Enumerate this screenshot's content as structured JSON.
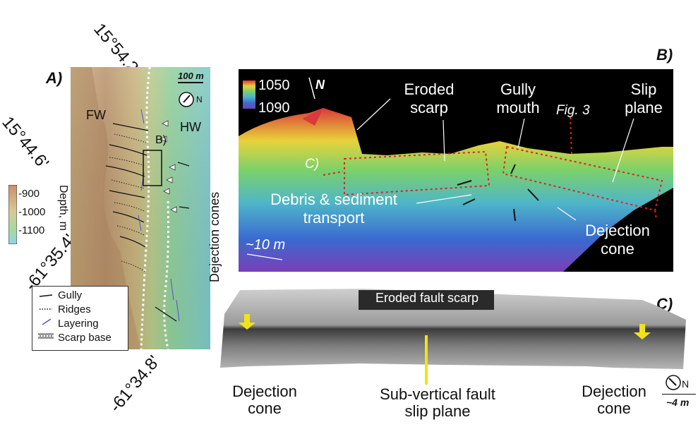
{
  "panelA": {
    "letter": "A)",
    "coords": {
      "top": "15°54.2'",
      "left_upper": "15°44.6'",
      "left_lower": "-61°35.4'",
      "bottom": "-61°34.8'"
    },
    "fw_label": "FW",
    "hw_label": "HW",
    "box_label": "B)",
    "scale_label": "100 m",
    "north_label": "N",
    "dejection_label": "Dejection cones",
    "depth_title": "Depth, m",
    "depth_ticks": [
      "-900",
      "-1000",
      "-1100"
    ],
    "legend": [
      "Gully",
      "Ridges",
      "Layering",
      "Scarp base"
    ]
  },
  "panelB": {
    "letter": "B)",
    "scale_top": "1050",
    "scale_bottom": "1090",
    "north": "N",
    "labels": {
      "eroded_scarp": "Eroded scarp",
      "gully_mouth": "Gully mouth",
      "fig3": "Fig. 3",
      "slip_plane": "Slip plane",
      "c_ref": "C)",
      "debris": "Debris & sediment transport",
      "dejection": "Dejection cone",
      "scale": "~10 m"
    }
  },
  "panelC": {
    "letter": "C)",
    "banner": "Eroded fault scarp",
    "left_caption": "Dejection cone",
    "center_caption": "Sub-vertical fault slip plane",
    "right_caption": "Dejection cone",
    "north": "N",
    "scale": "~4 m"
  },
  "colors": {
    "accent_yellow": "#f2e21a",
    "dotted_red": "#e02020"
  }
}
